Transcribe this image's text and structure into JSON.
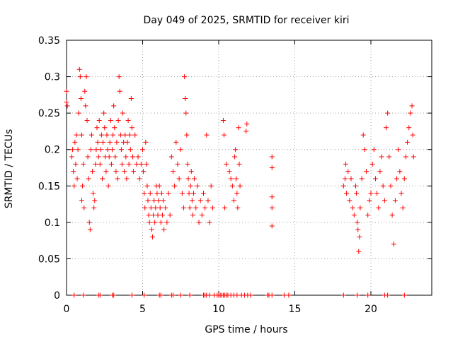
{
  "chart_data": {
    "type": "scatter",
    "title": "Day 049 of 2025, SRMTID for receiver kiri",
    "xlabel": "GPS time / hours",
    "ylabel": "SRMTID / TECUs",
    "xlim": [
      0,
      24
    ],
    "ylim": [
      0,
      0.35
    ],
    "xticks": [
      0,
      5,
      10,
      15,
      20
    ],
    "xtick_labels": [
      "0",
      "5",
      "10",
      "15",
      "20"
    ],
    "yticks": [
      0,
      0.05,
      0.1,
      0.15,
      0.2,
      0.25,
      0.3,
      0.35
    ],
    "ytick_labels": [
      "0",
      "0.05",
      "0.1",
      "0.15",
      "0.2",
      "0.25",
      "0.3",
      "0.35"
    ],
    "grid": true,
    "marker": "+",
    "color": "#ff0000",
    "series": [
      {
        "name": "SRMTID",
        "points": [
          [
            0.0,
            0.28
          ],
          [
            0.0,
            0.265
          ],
          [
            0.05,
            0.26
          ],
          [
            0.35,
            0.19
          ],
          [
            0.4,
            0.2
          ],
          [
            0.45,
            0.17
          ],
          [
            0.5,
            0.15
          ],
          [
            0.55,
            0.21
          ],
          [
            0.6,
            0.18
          ],
          [
            0.65,
            0.22
          ],
          [
            0.7,
            0.16
          ],
          [
            0.75,
            0.2
          ],
          [
            0.8,
            0.25
          ],
          [
            0.85,
            0.31
          ],
          [
            0.9,
            0.3
          ],
          [
            0.95,
            0.27
          ],
          [
            1.0,
            0.22
          ],
          [
            1.0,
            0.13
          ],
          [
            1.05,
            0.15
          ],
          [
            1.1,
            0.18
          ],
          [
            1.15,
            0.12
          ],
          [
            1.2,
            0.28
          ],
          [
            1.25,
            0.26
          ],
          [
            1.3,
            0.3
          ],
          [
            1.35,
            0.24
          ],
          [
            1.4,
            0.19
          ],
          [
            1.45,
            0.16
          ],
          [
            1.5,
            0.1
          ],
          [
            1.55,
            0.09
          ],
          [
            1.6,
            0.2
          ],
          [
            1.65,
            0.22
          ],
          [
            1.7,
            0.17
          ],
          [
            1.75,
            0.14
          ],
          [
            1.8,
            0.12
          ],
          [
            1.85,
            0.13
          ],
          [
            1.9,
            0.18
          ],
          [
            1.95,
            0.2
          ],
          [
            2.0,
            0.23
          ],
          [
            2.05,
            0.21
          ],
          [
            2.1,
            0.19
          ],
          [
            2.15,
            0.24
          ],
          [
            2.2,
            0.18
          ],
          [
            2.25,
            0.2
          ],
          [
            2.3,
            0.22
          ],
          [
            2.35,
            0.16
          ],
          [
            2.4,
            0.21
          ],
          [
            2.45,
            0.25
          ],
          [
            2.5,
            0.23
          ],
          [
            2.55,
            0.19
          ],
          [
            2.6,
            0.17
          ],
          [
            2.65,
            0.22
          ],
          [
            2.7,
            0.2
          ],
          [
            2.75,
            0.15
          ],
          [
            2.8,
            0.19
          ],
          [
            2.85,
            0.21
          ],
          [
            2.9,
            0.24
          ],
          [
            2.95,
            0.18
          ],
          [
            3.0,
            0.2
          ],
          [
            3.05,
            0.22
          ],
          [
            3.1,
            0.26
          ],
          [
            3.15,
            0.23
          ],
          [
            3.2,
            0.19
          ],
          [
            3.25,
            0.17
          ],
          [
            3.3,
            0.21
          ],
          [
            3.35,
            0.16
          ],
          [
            3.4,
            0.24
          ],
          [
            3.45,
            0.3
          ],
          [
            3.5,
            0.28
          ],
          [
            3.55,
            0.22
          ],
          [
            3.6,
            0.2
          ],
          [
            3.65,
            0.18
          ],
          [
            3.7,
            0.25
          ],
          [
            3.75,
            0.21
          ],
          [
            3.8,
            0.17
          ],
          [
            3.85,
            0.22
          ],
          [
            3.9,
            0.19
          ],
          [
            3.95,
            0.16
          ],
          [
            4.0,
            0.21
          ],
          [
            4.05,
            0.24
          ],
          [
            4.1,
            0.18
          ],
          [
            4.15,
            0.22
          ],
          [
            4.2,
            0.2
          ],
          [
            4.25,
            0.27
          ],
          [
            4.3,
            0.23
          ],
          [
            4.35,
            0.19
          ],
          [
            4.4,
            0.17
          ],
          [
            4.5,
            0.22
          ],
          [
            4.6,
            0.18
          ],
          [
            4.7,
            0.19
          ],
          [
            4.8,
            0.16
          ],
          [
            4.9,
            0.18
          ],
          [
            5.0,
            0.2
          ],
          [
            5.05,
            0.17
          ],
          [
            5.1,
            0.14
          ],
          [
            5.15,
            0.12
          ],
          [
            5.2,
            0.21
          ],
          [
            5.25,
            0.18
          ],
          [
            5.3,
            0.15
          ],
          [
            5.35,
            0.13
          ],
          [
            5.4,
            0.11
          ],
          [
            5.45,
            0.1
          ],
          [
            5.5,
            0.14
          ],
          [
            5.55,
            0.12
          ],
          [
            5.6,
            0.09
          ],
          [
            5.65,
            0.08
          ],
          [
            5.7,
            0.11
          ],
          [
            5.75,
            0.13
          ],
          [
            5.8,
            0.1
          ],
          [
            5.85,
            0.12
          ],
          [
            5.9,
            0.15
          ],
          [
            5.95,
            0.14
          ],
          [
            6.0,
            0.11
          ],
          [
            6.05,
            0.13
          ],
          [
            6.1,
            0.15
          ],
          [
            6.15,
            0.12
          ],
          [
            6.2,
            0.1
          ],
          [
            6.25,
            0.14
          ],
          [
            6.3,
            0.11
          ],
          [
            6.35,
            0.13
          ],
          [
            6.4,
            0.09
          ],
          [
            6.5,
            0.12
          ],
          [
            6.6,
            0.1
          ],
          [
            6.7,
            0.14
          ],
          [
            6.8,
            0.11
          ],
          [
            6.9,
            0.19
          ],
          [
            7.0,
            0.17
          ],
          [
            7.1,
            0.15
          ],
          [
            7.2,
            0.21
          ],
          [
            7.3,
            0.18
          ],
          [
            7.4,
            0.16
          ],
          [
            7.5,
            0.2
          ],
          [
            7.6,
            0.14
          ],
          [
            7.7,
            0.12
          ],
          [
            7.75,
            0.3
          ],
          [
            7.8,
            0.27
          ],
          [
            7.85,
            0.25
          ],
          [
            7.9,
            0.22
          ],
          [
            7.95,
            0.18
          ],
          [
            8.0,
            0.16
          ],
          [
            8.05,
            0.14
          ],
          [
            8.1,
            0.12
          ],
          [
            8.15,
            0.15
          ],
          [
            8.2,
            0.17
          ],
          [
            8.25,
            0.13
          ],
          [
            8.3,
            0.11
          ],
          [
            8.35,
            0.14
          ],
          [
            8.4,
            0.16
          ],
          [
            8.5,
            0.12
          ],
          [
            8.6,
            0.15
          ],
          [
            8.7,
            0.1
          ],
          [
            8.8,
            0.13
          ],
          [
            8.9,
            0.11
          ],
          [
            9.0,
            0.14
          ],
          [
            9.1,
            0.12
          ],
          [
            9.2,
            0.22
          ],
          [
            9.3,
            0.13
          ],
          [
            9.4,
            0.1
          ],
          [
            9.5,
            0.15
          ],
          [
            9.6,
            0.12
          ],
          [
            10.3,
            0.24
          ],
          [
            10.35,
            0.22
          ],
          [
            10.4,
            0.12
          ],
          [
            10.5,
            0.18
          ],
          [
            10.7,
            0.17
          ],
          [
            10.8,
            0.16
          ],
          [
            10.9,
            0.15
          ],
          [
            11.0,
            0.13
          ],
          [
            11.05,
            0.19
          ],
          [
            11.1,
            0.2
          ],
          [
            11.15,
            0.16
          ],
          [
            11.2,
            0.14
          ],
          [
            11.25,
            0.12
          ],
          [
            11.3,
            0.23
          ],
          [
            11.35,
            0.18
          ],
          [
            11.4,
            0.15
          ],
          [
            11.8,
            0.225
          ],
          [
            11.85,
            0.235
          ],
          [
            13.5,
            0.19
          ],
          [
            13.5,
            0.175
          ],
          [
            13.5,
            0.135
          ],
          [
            13.5,
            0.12
          ],
          [
            13.5,
            0.095
          ],
          [
            18.2,
            0.15
          ],
          [
            18.3,
            0.16
          ],
          [
            18.35,
            0.18
          ],
          [
            18.4,
            0.14
          ],
          [
            18.5,
            0.17
          ],
          [
            18.6,
            0.13
          ],
          [
            18.7,
            0.16
          ],
          [
            18.8,
            0.12
          ],
          [
            18.9,
            0.11
          ],
          [
            19.0,
            0.15
          ],
          [
            19.05,
            0.14
          ],
          [
            19.1,
            0.1
          ],
          [
            19.15,
            0.09
          ],
          [
            19.2,
            0.06
          ],
          [
            19.25,
            0.08
          ],
          [
            19.3,
            0.12
          ],
          [
            19.4,
            0.16
          ],
          [
            19.5,
            0.22
          ],
          [
            19.6,
            0.2
          ],
          [
            19.7,
            0.17
          ],
          [
            19.8,
            0.11
          ],
          [
            19.9,
            0.13
          ],
          [
            20.0,
            0.14
          ],
          [
            20.1,
            0.18
          ],
          [
            20.2,
            0.2
          ],
          [
            20.3,
            0.16
          ],
          [
            20.4,
            0.14
          ],
          [
            20.5,
            0.12
          ],
          [
            20.6,
            0.17
          ],
          [
            20.7,
            0.19
          ],
          [
            20.8,
            0.15
          ],
          [
            20.9,
            0.13
          ],
          [
            21.0,
            0.23
          ],
          [
            21.1,
            0.25
          ],
          [
            21.2,
            0.19
          ],
          [
            21.3,
            0.15
          ],
          [
            21.4,
            0.11
          ],
          [
            21.5,
            0.07
          ],
          [
            21.6,
            0.13
          ],
          [
            21.7,
            0.16
          ],
          [
            21.8,
            0.2
          ],
          [
            21.9,
            0.17
          ],
          [
            22.0,
            0.14
          ],
          [
            22.1,
            0.12
          ],
          [
            22.2,
            0.16
          ],
          [
            22.3,
            0.19
          ],
          [
            22.4,
            0.21
          ],
          [
            22.5,
            0.23
          ],
          [
            22.6,
            0.25
          ],
          [
            22.7,
            0.26
          ],
          [
            22.75,
            0.22
          ],
          [
            22.8,
            0.19
          ]
        ]
      }
    ],
    "zero_points_x": [
      0.5,
      1.1,
      2.1,
      2.2,
      3.0,
      3.1,
      4.3,
      5.1,
      6.1,
      6.2,
      6.9,
      7.0,
      7.5,
      8.1,
      9.0,
      9.1,
      9.2,
      9.4,
      9.7,
      9.9,
      10.0,
      10.1,
      10.2,
      10.3,
      10.4,
      10.5,
      10.6,
      10.8,
      11.0,
      11.2,
      11.5,
      11.7,
      11.9,
      12.1,
      13.2,
      13.3,
      13.5,
      14.3,
      14.6,
      18.2,
      19.1,
      19.8,
      20.9,
      21.1,
      22.2
    ]
  }
}
